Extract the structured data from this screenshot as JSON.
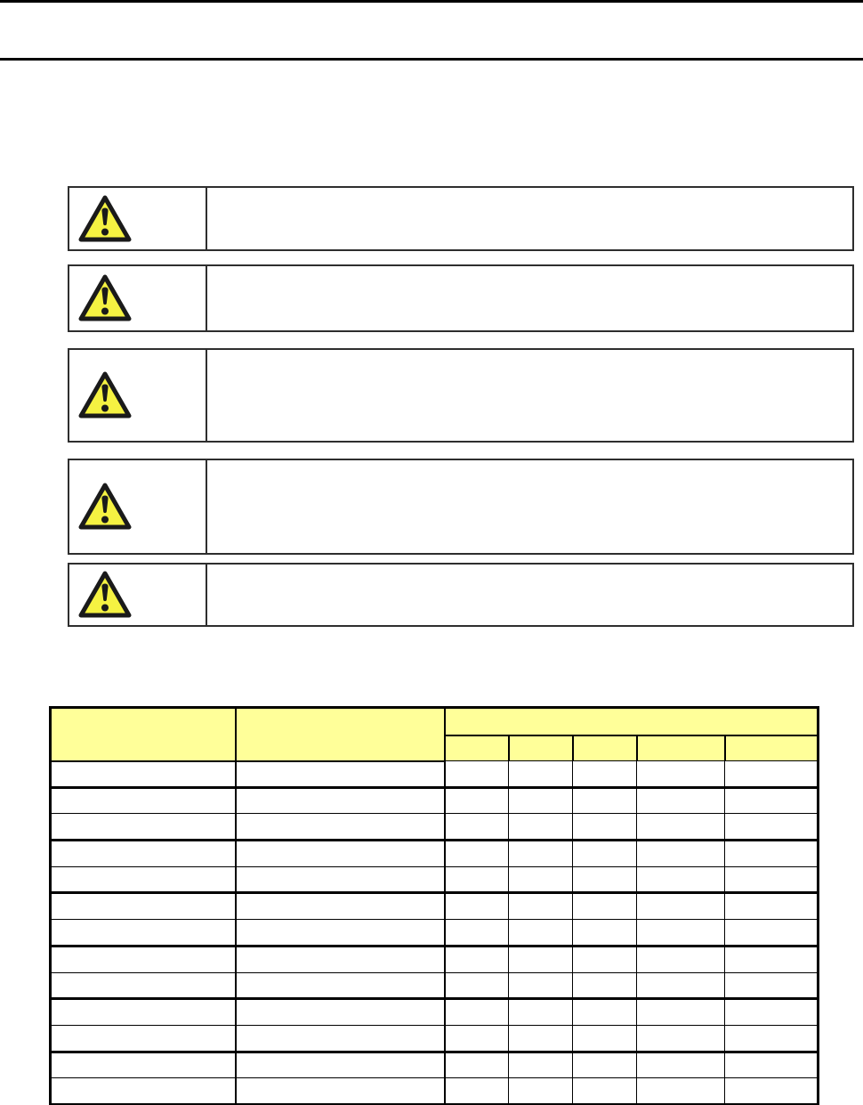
{
  "page": {
    "background": "#ffffff",
    "top_border_color": "#000000",
    "header_rule_color": "#000000"
  },
  "warning_section": {
    "icon_colors": {
      "fill": "#F5F242",
      "stroke": "#1A1A1A"
    },
    "boxes": [
      {
        "icon": "warning-triangle-icon",
        "text": ""
      },
      {
        "icon": "warning-triangle-icon",
        "text": ""
      },
      {
        "icon": "warning-triangle-icon",
        "text": ""
      },
      {
        "icon": "warning-triangle-icon",
        "text": ""
      },
      {
        "icon": "warning-triangle-icon",
        "text": ""
      }
    ]
  },
  "table": {
    "header_fill": "#FFFF99",
    "border_color": "#000000",
    "header": {
      "col1_label": "",
      "col2_label": "",
      "group_label": "",
      "sub_labels": [
        "",
        "",
        "",
        "",
        ""
      ]
    },
    "body_rows": [
      [
        "",
        "",
        "",
        "",
        "",
        "",
        ""
      ],
      [
        "",
        "",
        "",
        "",
        "",
        "",
        ""
      ],
      [
        "",
        "",
        "",
        "",
        "",
        "",
        ""
      ],
      [
        "",
        "",
        "",
        "",
        "",
        "",
        ""
      ],
      [
        "",
        "",
        "",
        "",
        "",
        "",
        ""
      ],
      [
        "",
        "",
        "",
        "",
        "",
        "",
        ""
      ],
      [
        "",
        "",
        "",
        "",
        "",
        "",
        ""
      ],
      [
        "",
        "",
        "",
        "",
        "",
        "",
        ""
      ],
      [
        "",
        "",
        "",
        "",
        "",
        "",
        ""
      ],
      [
        "",
        "",
        "",
        "",
        "",
        "",
        ""
      ],
      [
        "",
        "",
        "",
        "",
        "",
        "",
        ""
      ],
      [
        "",
        "",
        "",
        "",
        "",
        "",
        ""
      ],
      [
        "",
        "",
        "",
        "",
        "",
        "",
        ""
      ]
    ]
  }
}
